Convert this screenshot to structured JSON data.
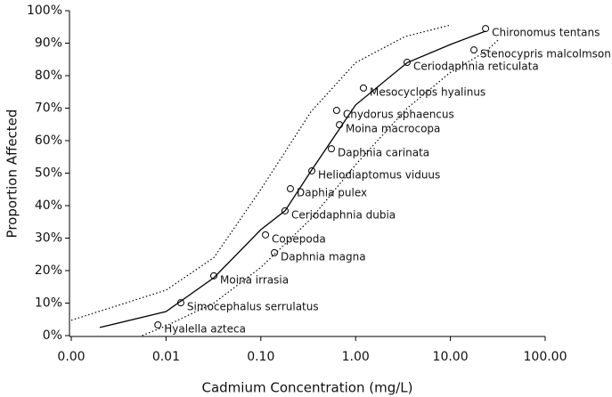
{
  "chart_data": {
    "type": "scatter",
    "x_label": "Cadmium Concentration (mg/L)",
    "y_label": "Proportion Affected",
    "log_x": true,
    "xlim": [
      0.001,
      100
    ],
    "ylim": [
      0,
      100
    ],
    "xticks": [
      {
        "value": 0.001,
        "label": "0.00"
      },
      {
        "value": 0.01,
        "label": "0.01"
      },
      {
        "value": 0.1,
        "label": "0.10"
      },
      {
        "value": 1,
        "label": "1.00"
      },
      {
        "value": 10,
        "label": "10.00"
      },
      {
        "value": 100,
        "label": "100.00"
      }
    ],
    "yticks": [
      {
        "value": 0,
        "label": "0%"
      },
      {
        "value": 10,
        "label": "10%"
      },
      {
        "value": 20,
        "label": "20%"
      },
      {
        "value": 30,
        "label": "30%"
      },
      {
        "value": 40,
        "label": "40%"
      },
      {
        "value": 50,
        "label": "50%"
      },
      {
        "value": 60,
        "label": "60%"
      },
      {
        "value": 70,
        "label": "70%"
      },
      {
        "value": 80,
        "label": "80%"
      },
      {
        "value": 90,
        "label": "90%"
      },
      {
        "value": 100,
        "label": "100%"
      }
    ],
    "series": [
      {
        "mode": "markers",
        "color": "#000000",
        "labels": [
          "Hyalella azteca",
          "Simocephalus serrulatus",
          "Moina irrasia",
          "Daphnia magna",
          "Copepoda",
          "Ceriodaphnia dubia",
          "Daphia pulex",
          "Heliodiaptomus viduus",
          "Daphnia carinata",
          "Moina macrocopa",
          "Chydorus sphaencus",
          "Mesocyclops hyalinus",
          "Ceriodaphnia reticulata",
          "Stenocypris malcolmsoni",
          "Chironomus tentans"
        ],
        "x": [
          0.0082,
          0.0143,
          0.0319,
          0.139,
          0.112,
          0.18,
          0.205,
          0.345,
          0.555,
          0.675,
          0.63,
          1.21,
          3.49,
          17.7,
          23.5
        ],
        "values": [
          3.3,
          10.1,
          18.4,
          25.5,
          31.0,
          38.4,
          45.2,
          50.7,
          57.5,
          64.9,
          69.3,
          76.2,
          84.1,
          87.9,
          94.5
        ]
      },
      {
        "mode": "line",
        "style": "solid",
        "color": "#000000",
        "x": [
          0.002,
          0.01,
          0.032,
          0.1,
          0.18,
          0.34,
          1,
          3.5,
          10,
          23.5
        ],
        "values": [
          2.5,
          7.4,
          17.8,
          32.6,
          38.4,
          50.7,
          71,
          84,
          89.6,
          93.7
        ]
      },
      {
        "mode": "line",
        "style": "dotted",
        "color": "#000000",
        "x": [
          0.001,
          0.01,
          0.032,
          0.1,
          0.34,
          1,
          3.3,
          10
        ],
        "values": [
          4.7,
          14,
          24,
          45,
          69,
          84,
          92,
          95.6
        ]
      },
      {
        "mode": "line",
        "style": "dotted",
        "color": "#000000",
        "x": [
          0.0056,
          0.01,
          0.032,
          0.1,
          0.34,
          1,
          3.5,
          10,
          23.5,
          32
        ],
        "values": [
          0,
          3,
          10,
          21,
          36,
          52.6,
          70,
          81,
          87.4,
          91
        ]
      }
    ]
  }
}
